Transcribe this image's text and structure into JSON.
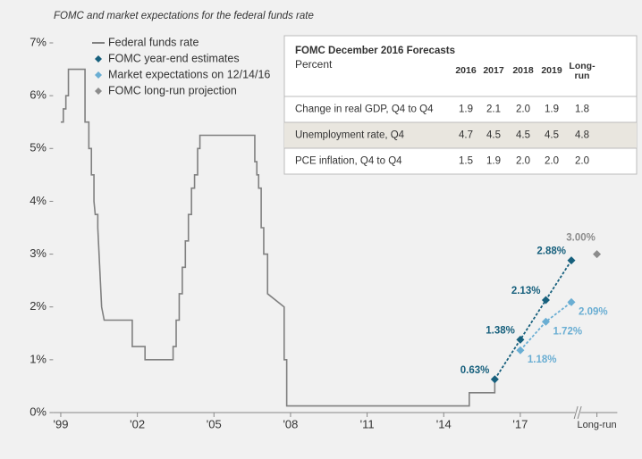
{
  "chart_data": {
    "type": "line",
    "title": "FOMC and market expectations for the federal funds rate",
    "xlim": [
      1998.7,
      2020.8
    ],
    "xticks": [
      {
        "value": 1999,
        "label": "'99"
      },
      {
        "value": 2002,
        "label": "'02"
      },
      {
        "value": 2005,
        "label": "'05"
      },
      {
        "value": 2008,
        "label": "'08"
      },
      {
        "value": 2011,
        "label": "'11"
      },
      {
        "value": 2014,
        "label": "'14"
      },
      {
        "value": 2017,
        "label": "'17"
      },
      {
        "value": 2020,
        "label": "Long-run"
      }
    ],
    "ylim": [
      0,
      7
    ],
    "yticks": [
      {
        "value": 0,
        "label": "0%"
      },
      {
        "value": 1,
        "label": "1%"
      },
      {
        "value": 2,
        "label": "2%"
      },
      {
        "value": 3,
        "label": "3%"
      },
      {
        "value": 4,
        "label": "4%"
      },
      {
        "value": 5,
        "label": "5%"
      },
      {
        "value": 6,
        "label": "6%"
      },
      {
        "value": 7,
        "label": "7%"
      }
    ],
    "series": [
      {
        "name": "Federal funds rate",
        "color": "#808080",
        "marker": "none",
        "linestyle": "solid",
        "x": [
          1999.0,
          1999.1,
          1999.1,
          1999.2,
          1999.2,
          1999.3,
          1999.3,
          1999.95,
          1999.95,
          2000.1,
          2000.1,
          2000.2,
          2000.2,
          2000.3,
          2000.3,
          2000.35,
          2000.45,
          2000.45,
          2000.5,
          2000.55,
          2000.6,
          2000.7,
          2001.8,
          2001.8,
          2002.3,
          2002.3,
          2003.4,
          2003.4,
          2003.52,
          2003.52,
          2003.64,
          2003.64,
          2003.76,
          2003.76,
          2003.88,
          2003.88,
          2004.0,
          2004.0,
          2004.12,
          2004.12,
          2004.24,
          2004.24,
          2004.36,
          2004.36,
          2004.45,
          2004.45,
          2006.6,
          2006.6,
          2006.68,
          2006.68,
          2006.75,
          2006.75,
          2006.85,
          2006.85,
          2006.95,
          2006.95,
          2007.1,
          2007.1,
          2007.75,
          2007.75,
          2007.85,
          2007.85,
          2015.0,
          2015.0,
          2016.0,
          2016.0
        ],
        "values": [
          5.5,
          5.5,
          5.75,
          5.75,
          6.0,
          6.0,
          6.5,
          6.5,
          5.5,
          5.5,
          5.0,
          5.0,
          4.5,
          4.5,
          4.0,
          3.75,
          3.75,
          3.5,
          3.0,
          2.5,
          2.0,
          1.75,
          1.75,
          1.25,
          1.25,
          1.0,
          1.0,
          1.25,
          1.25,
          1.75,
          1.75,
          2.25,
          2.25,
          2.75,
          2.75,
          3.25,
          3.25,
          3.75,
          3.75,
          4.25,
          4.25,
          4.5,
          4.5,
          5.0,
          5.0,
          5.25,
          5.25,
          4.75,
          4.75,
          4.5,
          4.5,
          4.25,
          4.25,
          3.5,
          3.5,
          3.0,
          3.0,
          2.25,
          2.0,
          1.0,
          1.0,
          0.125,
          0.125,
          0.375,
          0.375,
          0.625
        ]
      },
      {
        "name": "FOMC year-end estimates",
        "color": "#17607d",
        "marker": "diamond",
        "linestyle": "dashed",
        "label_side": "left",
        "x": [
          2016,
          2017,
          2018,
          2019
        ],
        "values": [
          0.63,
          1.38,
          2.13,
          2.88
        ],
        "value_labels": [
          "0.63%",
          "1.38%",
          "2.13%",
          "2.88%"
        ]
      },
      {
        "name": "Market expectations on 12/14/16",
        "color": "#6aaed3",
        "marker": "diamond",
        "linestyle": "dashed",
        "label_side": "right",
        "x": [
          2017,
          2018,
          2019
        ],
        "values": [
          1.18,
          1.72,
          2.09
        ],
        "value_labels": [
          "1.18%",
          "1.72%",
          "2.09%"
        ]
      },
      {
        "name": "FOMC long-run projection",
        "color": "#8c8c8c",
        "marker": "diamond",
        "linestyle": "none",
        "label_side": "top",
        "x": [
          2020
        ],
        "values": [
          3.0
        ],
        "value_labels": [
          "3.00%"
        ]
      }
    ],
    "table": {
      "title": "FOMC December 2016 Forecasts",
      "subtitle": "Percent",
      "columns": [
        "2016",
        "2017",
        "2018",
        "2019",
        "Long-run"
      ],
      "rows": [
        {
          "label": "Change in real GDP, Q4 to Q4",
          "values": [
            "1.9",
            "2.1",
            "2.0",
            "1.9",
            "1.8"
          ]
        },
        {
          "label": "Unemployment rate, Q4",
          "values": [
            "4.7",
            "4.5",
            "4.5",
            "4.5",
            "4.8"
          ]
        },
        {
          "label": "PCE inflation, Q4 to Q4",
          "values": [
            "1.5",
            "1.9",
            "2.0",
            "2.0",
            "2.0"
          ]
        }
      ]
    }
  }
}
